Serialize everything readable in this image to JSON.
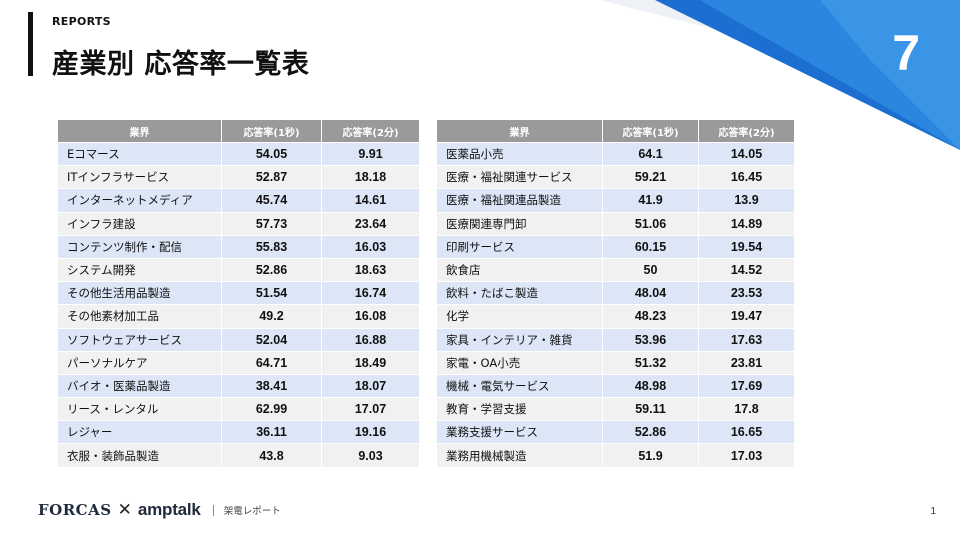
{
  "header": {
    "section_label": "REPORTS",
    "title": "産業別 応答率一覧表",
    "slide_number": "7"
  },
  "columns": {
    "industry": "業界",
    "rate_1s": "応答率(1秒)",
    "rate_2s": "応答率(2分)"
  },
  "table_left": [
    {
      "industry": "Eコマース",
      "rate_1s": "54.05",
      "rate_2s": "9.91"
    },
    {
      "industry": "ITインフラサービス",
      "rate_1s": "52.87",
      "rate_2s": "18.18"
    },
    {
      "industry": "インターネットメディア",
      "rate_1s": "45.74",
      "rate_2s": "14.61"
    },
    {
      "industry": "インフラ建設",
      "rate_1s": "57.73",
      "rate_2s": "23.64"
    },
    {
      "industry": "コンテンツ制作・配信",
      "rate_1s": "55.83",
      "rate_2s": "16.03"
    },
    {
      "industry": "システム開発",
      "rate_1s": "52.86",
      "rate_2s": "18.63"
    },
    {
      "industry": "その他生活用品製造",
      "rate_1s": "51.54",
      "rate_2s": "16.74"
    },
    {
      "industry": "その他素材加工品",
      "rate_1s": "49.2",
      "rate_2s": "16.08"
    },
    {
      "industry": "ソフトウェアサービス",
      "rate_1s": "52.04",
      "rate_2s": "16.88"
    },
    {
      "industry": "パーソナルケア",
      "rate_1s": "64.71",
      "rate_2s": "18.49"
    },
    {
      "industry": "バイオ・医薬品製造",
      "rate_1s": "38.41",
      "rate_2s": "18.07"
    },
    {
      "industry": "リース・レンタル",
      "rate_1s": "62.99",
      "rate_2s": "17.07"
    },
    {
      "industry": "レジャー",
      "rate_1s": "36.11",
      "rate_2s": "19.16"
    },
    {
      "industry": "衣服・装飾品製造",
      "rate_1s": "43.8",
      "rate_2s": "9.03"
    }
  ],
  "table_right": [
    {
      "industry": "医薬品小売",
      "rate_1s": "64.1",
      "rate_2s": "14.05"
    },
    {
      "industry": "医療・福祉関連サービス",
      "rate_1s": "59.21",
      "rate_2s": "16.45"
    },
    {
      "industry": "医療・福祉関連品製造",
      "rate_1s": "41.9",
      "rate_2s": "13.9"
    },
    {
      "industry": "医療関連専門卸",
      "rate_1s": "51.06",
      "rate_2s": "14.89"
    },
    {
      "industry": "印刷サービス",
      "rate_1s": "60.15",
      "rate_2s": "19.54"
    },
    {
      "industry": "飲食店",
      "rate_1s": "50",
      "rate_2s": "14.52"
    },
    {
      "industry": "飲料・たばこ製造",
      "rate_1s": "48.04",
      "rate_2s": "23.53"
    },
    {
      "industry": "化学",
      "rate_1s": "48.23",
      "rate_2s": "19.47"
    },
    {
      "industry": "家具・インテリア・雑貨",
      "rate_1s": "53.96",
      "rate_2s": "17.63"
    },
    {
      "industry": "家電・OA小売",
      "rate_1s": "51.32",
      "rate_2s": "23.81"
    },
    {
      "industry": "機械・電気サービス",
      "rate_1s": "48.98",
      "rate_2s": "17.69"
    },
    {
      "industry": "教育・学習支援",
      "rate_1s": "59.11",
      "rate_2s": "17.8"
    },
    {
      "industry": "業務支援サービス",
      "rate_1s": "52.86",
      "rate_2s": "16.65"
    },
    {
      "industry": "業務用機械製造",
      "rate_1s": "51.9",
      "rate_2s": "17.03"
    }
  ],
  "footer": {
    "brand_1": "FORCAS",
    "separator_symbol": "✕",
    "brand_2": "amptalk",
    "label": "架電レポート",
    "page_number": "1"
  },
  "colors": {
    "header_fill": "#9a9a9a",
    "row_blue": "#dce6f7",
    "row_gray": "#f1f1f1",
    "accent_blue": "#2f7fd1"
  }
}
